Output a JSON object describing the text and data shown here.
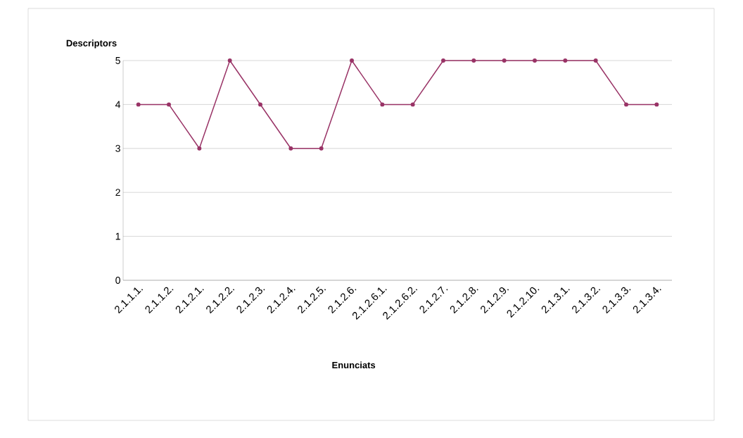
{
  "chart_data": {
    "type": "line",
    "xlabel": "Enunciats",
    "ylabel": "Descriptors",
    "categories": [
      "2.1.1.1.",
      "2.1.1.2.",
      "2.1.2.1.",
      "2.1.2.2.",
      "2.1.2.3.",
      "2.1.2.4.",
      "2.1.2.5.",
      "2.1.2.6.",
      "2.1.2.6.1.",
      "2.1.2.6.2.",
      "2.1.2.7.",
      "2.1.2.8.",
      "2.1.2.9.",
      "2.1.2.10.",
      "2.1.3.1.",
      "2.1.3.2.",
      "2.1.3.3.",
      "2.1.3.4."
    ],
    "values": [
      4,
      4,
      3,
      5,
      4,
      3,
      3,
      5,
      4,
      4,
      5,
      5,
      5,
      5,
      5,
      5,
      4,
      4
    ],
    "color": "#993366",
    "ylim": [
      0,
      5
    ],
    "yticks": [
      0,
      1,
      2,
      3,
      4,
      5
    ],
    "grid": "y",
    "marker": "circle"
  }
}
